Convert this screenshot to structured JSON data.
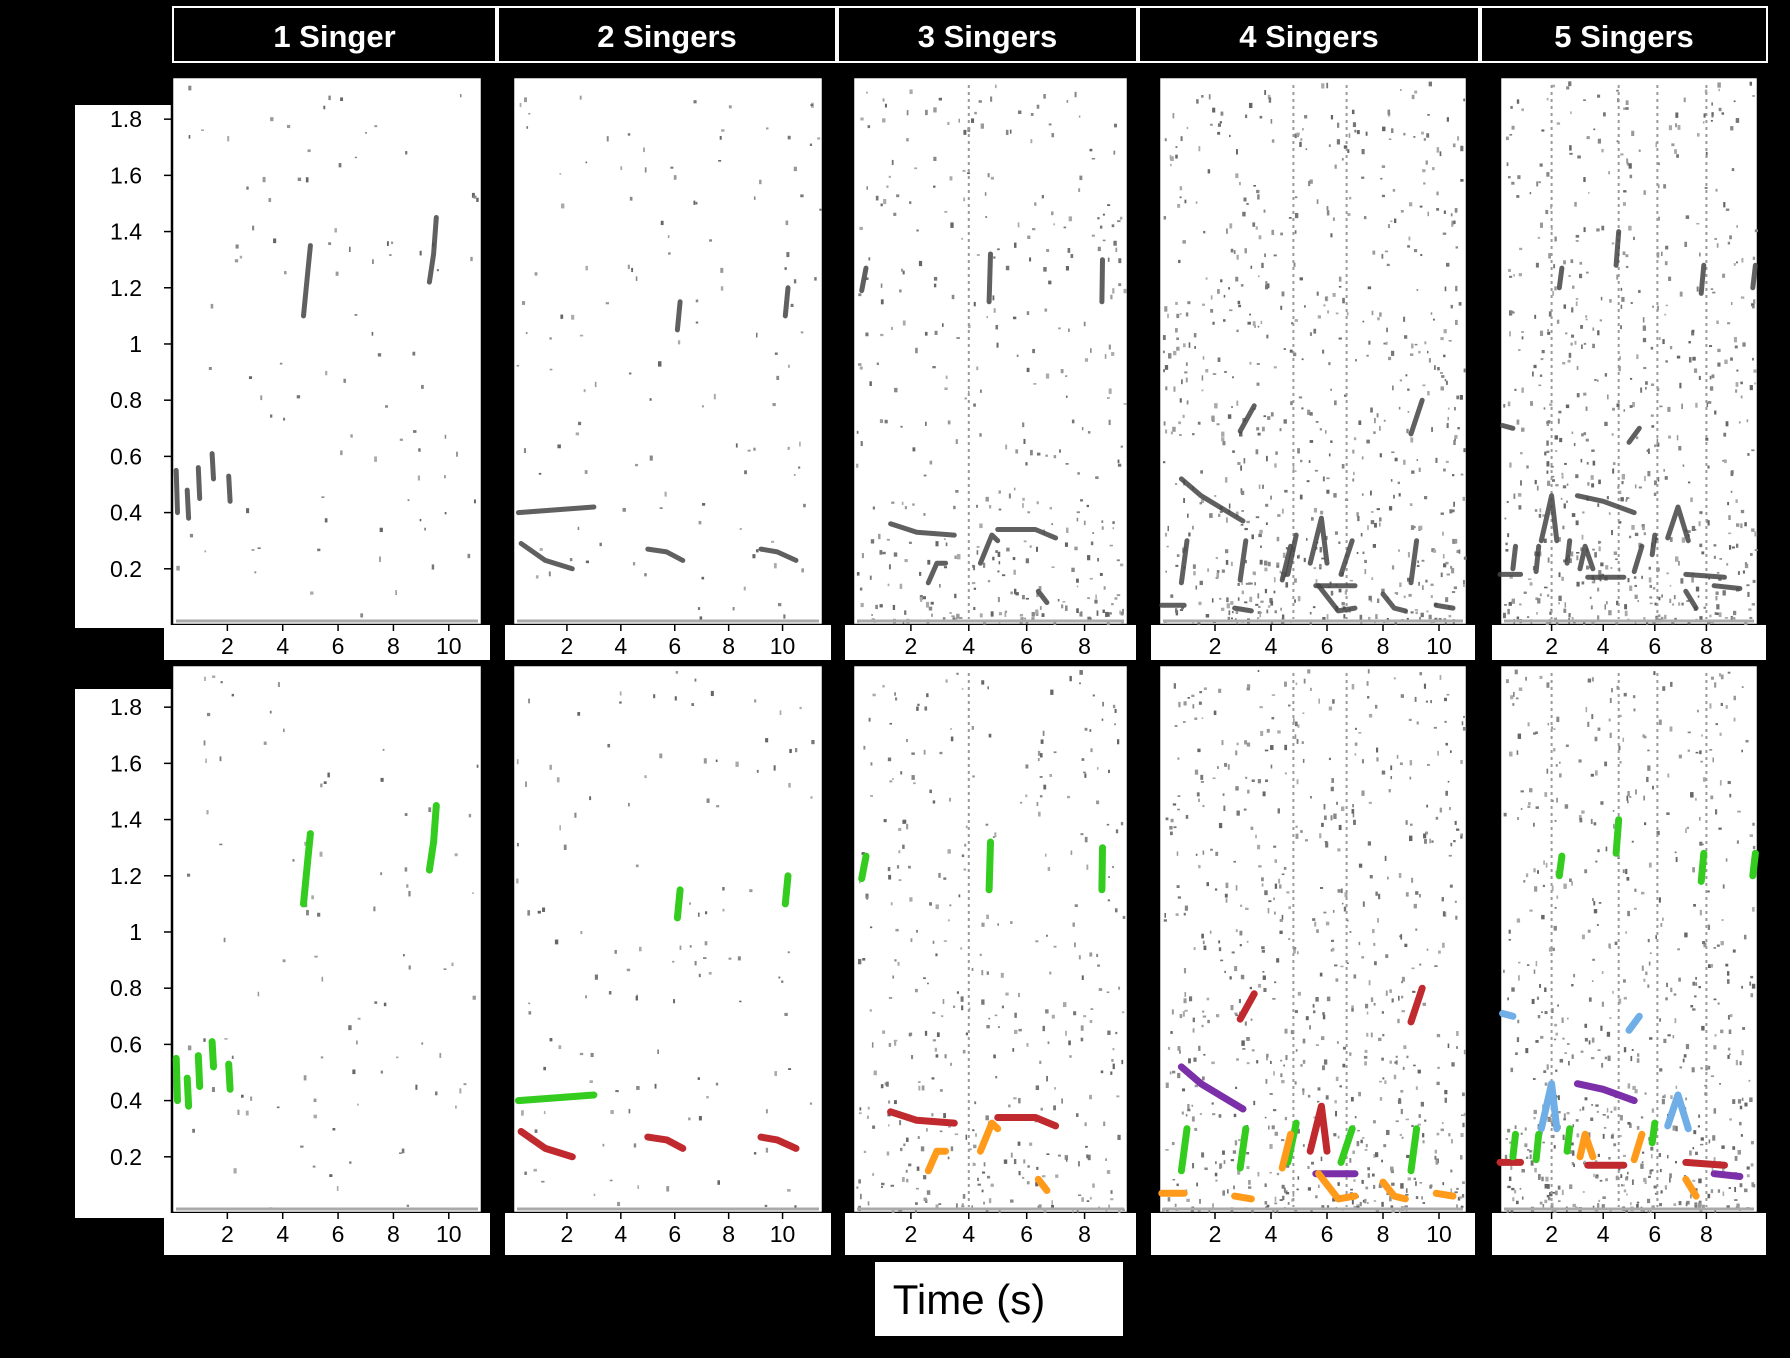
{
  "chart_data": {
    "type": "spectrogram-grid",
    "xlabel": "Time (s)",
    "ylabel": "",
    "columns": [
      "1 Singer",
      "2 Singers",
      "3 Singers",
      "4 Singers",
      "5 Singers"
    ],
    "rows": [
      "spectrogram",
      "annotated spectrogram"
    ],
    "yticks": [
      "0.2",
      "0.4",
      "0.6",
      "0.8",
      "1",
      "1.2",
      "1.4",
      "1.6",
      "1.8"
    ],
    "yticks_values": [
      0.2,
      0.4,
      0.6,
      0.8,
      1.0,
      1.2,
      1.4,
      1.6,
      1.8
    ],
    "ylim": [
      0.0,
      1.95
    ],
    "grid": false,
    "legend": "none",
    "panels": [
      {
        "column": "1 Singer",
        "xlim": [
          0,
          11.2
        ],
        "xticks": [
          2,
          4,
          6,
          8,
          10
        ]
      },
      {
        "column": "2 Singers",
        "xlim": [
          0,
          11.5
        ],
        "xticks": [
          2,
          4,
          6,
          8,
          10
        ]
      },
      {
        "column": "3 Singers",
        "xlim": [
          0,
          9.5
        ],
        "xticks": [
          2,
          4,
          6,
          8
        ]
      },
      {
        "column": "4 Singers",
        "xlim": [
          0,
          11.0
        ],
        "xticks": [
          2,
          4,
          6,
          8,
          10
        ]
      },
      {
        "column": "5 Singers",
        "xlim": [
          0,
          10.0
        ],
        "xticks": [
          2,
          4,
          6,
          8
        ]
      }
    ],
    "annotation_colors": [
      "#33cc1f",
      "#c0292d",
      "#ff9a1a",
      "#7b2fa8",
      "#6faee6"
    ],
    "calls": [
      {
        "column": 0,
        "color": "#33cc1f",
        "pts": [
          [
            0.15,
            0.55
          ],
          [
            0.2,
            0.4
          ]
        ]
      },
      {
        "column": 0,
        "color": "#33cc1f",
        "pts": [
          [
            0.55,
            0.48
          ],
          [
            0.6,
            0.38
          ]
        ]
      },
      {
        "column": 0,
        "color": "#33cc1f",
        "pts": [
          [
            0.95,
            0.56
          ],
          [
            1.0,
            0.45
          ]
        ]
      },
      {
        "column": 0,
        "color": "#33cc1f",
        "pts": [
          [
            1.45,
            0.61
          ],
          [
            1.5,
            0.52
          ]
        ]
      },
      {
        "column": 0,
        "color": "#33cc1f",
        "pts": [
          [
            2.05,
            0.53
          ],
          [
            2.1,
            0.44
          ]
        ]
      },
      {
        "column": 0,
        "color": "#33cc1f",
        "pts": [
          [
            4.75,
            1.1
          ],
          [
            4.9,
            1.25
          ],
          [
            5.0,
            1.35
          ]
        ]
      },
      {
        "column": 0,
        "color": "#33cc1f",
        "pts": [
          [
            9.3,
            1.22
          ],
          [
            9.45,
            1.32
          ],
          [
            9.55,
            1.45
          ]
        ]
      },
      {
        "column": 1,
        "color": "#33cc1f",
        "pts": [
          [
            0.2,
            0.4
          ],
          [
            3.0,
            0.42
          ]
        ]
      },
      {
        "column": 1,
        "color": "#33cc1f",
        "pts": [
          [
            6.1,
            1.05
          ],
          [
            6.2,
            1.15
          ]
        ]
      },
      {
        "column": 1,
        "color": "#33cc1f",
        "pts": [
          [
            10.1,
            1.1
          ],
          [
            10.2,
            1.2
          ]
        ]
      },
      {
        "column": 1,
        "color": "#c0292d",
        "pts": [
          [
            0.3,
            0.29
          ],
          [
            1.2,
            0.23
          ],
          [
            2.2,
            0.2
          ]
        ]
      },
      {
        "column": 1,
        "color": "#c0292d",
        "pts": [
          [
            5.0,
            0.27
          ],
          [
            5.7,
            0.26
          ],
          [
            6.3,
            0.23
          ]
        ]
      },
      {
        "column": 1,
        "color": "#c0292d",
        "pts": [
          [
            9.2,
            0.27
          ],
          [
            9.8,
            0.26
          ],
          [
            10.5,
            0.23
          ]
        ]
      },
      {
        "column": 2,
        "color": "#33cc1f",
        "pts": [
          [
            0.3,
            1.19
          ],
          [
            0.45,
            1.27
          ]
        ]
      },
      {
        "column": 2,
        "color": "#33cc1f",
        "pts": [
          [
            4.7,
            1.15
          ],
          [
            4.75,
            1.32
          ]
        ]
      },
      {
        "column": 2,
        "color": "#33cc1f",
        "pts": [
          [
            8.6,
            1.15
          ],
          [
            8.62,
            1.3
          ]
        ]
      },
      {
        "column": 2,
        "color": "#c0292d",
        "pts": [
          [
            1.3,
            0.36
          ],
          [
            2.2,
            0.33
          ],
          [
            3.5,
            0.32
          ]
        ]
      },
      {
        "column": 2,
        "color": "#c0292d",
        "pts": [
          [
            5.0,
            0.34
          ],
          [
            6.3,
            0.34
          ],
          [
            7.0,
            0.31
          ]
        ]
      },
      {
        "column": 2,
        "color": "#ff9a1a",
        "pts": [
          [
            2.6,
            0.15
          ],
          [
            2.9,
            0.22
          ],
          [
            3.2,
            0.22
          ]
        ]
      },
      {
        "column": 2,
        "color": "#ff9a1a",
        "pts": [
          [
            4.4,
            0.22
          ],
          [
            4.8,
            0.32
          ],
          [
            5.0,
            0.3
          ]
        ]
      },
      {
        "column": 2,
        "color": "#ff9a1a",
        "pts": [
          [
            6.4,
            0.12
          ],
          [
            6.7,
            0.08
          ]
        ]
      },
      {
        "column": 3,
        "color": "#7b2fa8",
        "pts": [
          [
            0.8,
            0.52
          ],
          [
            1.5,
            0.46
          ],
          [
            2.5,
            0.4
          ],
          [
            3.0,
            0.37
          ]
        ]
      },
      {
        "column": 3,
        "color": "#7b2fa8",
        "pts": [
          [
            5.6,
            0.14
          ],
          [
            7.0,
            0.14
          ]
        ]
      },
      {
        "column": 3,
        "color": "#c0292d",
        "pts": [
          [
            2.9,
            0.69
          ],
          [
            3.4,
            0.78
          ]
        ]
      },
      {
        "column": 3,
        "color": "#c0292d",
        "pts": [
          [
            5.4,
            0.22
          ],
          [
            5.8,
            0.38
          ],
          [
            6.0,
            0.22
          ]
        ]
      },
      {
        "column": 3,
        "color": "#c0292d",
        "pts": [
          [
            9.0,
            0.68
          ],
          [
            9.4,
            0.8
          ]
        ]
      },
      {
        "column": 3,
        "color": "#33cc1f",
        "pts": [
          [
            0.8,
            0.15
          ],
          [
            1.0,
            0.3
          ]
        ]
      },
      {
        "column": 3,
        "color": "#33cc1f",
        "pts": [
          [
            2.9,
            0.16
          ],
          [
            3.1,
            0.3
          ]
        ]
      },
      {
        "column": 3,
        "color": "#33cc1f",
        "pts": [
          [
            4.6,
            0.18
          ],
          [
            4.9,
            0.32
          ]
        ]
      },
      {
        "column": 3,
        "color": "#33cc1f",
        "pts": [
          [
            6.5,
            0.18
          ],
          [
            6.9,
            0.3
          ]
        ]
      },
      {
        "column": 3,
        "color": "#33cc1f",
        "pts": [
          [
            9.0,
            0.15
          ],
          [
            9.2,
            0.3
          ]
        ]
      },
      {
        "column": 3,
        "color": "#ff9a1a",
        "pts": [
          [
            0.1,
            0.07
          ],
          [
            0.9,
            0.07
          ]
        ]
      },
      {
        "column": 3,
        "color": "#ff9a1a",
        "pts": [
          [
            2.7,
            0.06
          ],
          [
            3.3,
            0.05
          ]
        ]
      },
      {
        "column": 3,
        "color": "#ff9a1a",
        "pts": [
          [
            4.4,
            0.16
          ],
          [
            4.7,
            0.28
          ]
        ]
      },
      {
        "column": 3,
        "color": "#ff9a1a",
        "pts": [
          [
            5.7,
            0.14
          ],
          [
            6.4,
            0.05
          ],
          [
            7.0,
            0.06
          ]
        ]
      },
      {
        "column": 3,
        "color": "#ff9a1a",
        "pts": [
          [
            8.0,
            0.11
          ],
          [
            8.4,
            0.06
          ],
          [
            8.8,
            0.05
          ]
        ]
      },
      {
        "column": 3,
        "color": "#ff9a1a",
        "pts": [
          [
            9.9,
            0.07
          ],
          [
            10.5,
            0.06
          ]
        ]
      },
      {
        "column": 4,
        "color": "#6faee6",
        "pts": [
          [
            0.1,
            0.71
          ],
          [
            0.5,
            0.7
          ]
        ]
      },
      {
        "column": 4,
        "color": "#6faee6",
        "pts": [
          [
            1.6,
            0.3
          ],
          [
            2.0,
            0.46
          ],
          [
            2.2,
            0.3
          ]
        ]
      },
      {
        "column": 4,
        "color": "#6faee6",
        "pts": [
          [
            5.0,
            0.65
          ],
          [
            5.4,
            0.7
          ]
        ]
      },
      {
        "column": 4,
        "color": "#6faee6",
        "pts": [
          [
            6.5,
            0.31
          ],
          [
            6.9,
            0.42
          ],
          [
            7.3,
            0.3
          ]
        ]
      },
      {
        "column": 4,
        "color": "#7b2fa8",
        "pts": [
          [
            3.0,
            0.46
          ],
          [
            4.0,
            0.44
          ],
          [
            5.2,
            0.4
          ]
        ]
      },
      {
        "column": 4,
        "color": "#7b2fa8",
        "pts": [
          [
            8.3,
            0.14
          ],
          [
            9.3,
            0.13
          ]
        ]
      },
      {
        "column": 4,
        "color": "#c0292d",
        "pts": [
          [
            0.0,
            0.18
          ],
          [
            0.8,
            0.18
          ]
        ]
      },
      {
        "column": 4,
        "color": "#c0292d",
        "pts": [
          [
            3.4,
            0.17
          ],
          [
            4.8,
            0.17
          ]
        ]
      },
      {
        "column": 4,
        "color": "#c0292d",
        "pts": [
          [
            7.2,
            0.18
          ],
          [
            8.7,
            0.17
          ]
        ]
      },
      {
        "column": 4,
        "color": "#ff9a1a",
        "pts": [
          [
            3.1,
            0.2
          ],
          [
            3.3,
            0.28
          ],
          [
            3.6,
            0.2
          ]
        ]
      },
      {
        "column": 4,
        "color": "#ff9a1a",
        "pts": [
          [
            5.2,
            0.19
          ],
          [
            5.5,
            0.28
          ]
        ]
      },
      {
        "column": 4,
        "color": "#ff9a1a",
        "pts": [
          [
            7.2,
            0.12
          ],
          [
            7.6,
            0.06
          ]
        ]
      },
      {
        "column": 4,
        "color": "#33cc1f",
        "pts": [
          [
            0.5,
            0.2
          ],
          [
            0.6,
            0.28
          ]
        ]
      },
      {
        "column": 4,
        "color": "#33cc1f",
        "pts": [
          [
            1.4,
            0.19
          ],
          [
            1.5,
            0.28
          ]
        ]
      },
      {
        "column": 4,
        "color": "#33cc1f",
        "pts": [
          [
            2.6,
            0.22
          ],
          [
            2.7,
            0.3
          ]
        ]
      },
      {
        "column": 4,
        "color": "#33cc1f",
        "pts": [
          [
            5.9,
            0.25
          ],
          [
            6.0,
            0.32
          ]
        ]
      },
      {
        "column": 4,
        "color": "#33cc1f",
        "pts": [
          [
            2.3,
            1.2
          ],
          [
            2.4,
            1.27
          ]
        ]
      },
      {
        "column": 4,
        "color": "#33cc1f",
        "pts": [
          [
            4.5,
            1.28
          ],
          [
            4.6,
            1.4
          ]
        ]
      },
      {
        "column": 4,
        "color": "#33cc1f",
        "pts": [
          [
            7.8,
            1.18
          ],
          [
            7.9,
            1.28
          ]
        ]
      },
      {
        "column": 4,
        "color": "#33cc1f",
        "pts": [
          [
            9.8,
            1.2
          ],
          [
            9.9,
            1.28
          ]
        ]
      }
    ]
  }
}
